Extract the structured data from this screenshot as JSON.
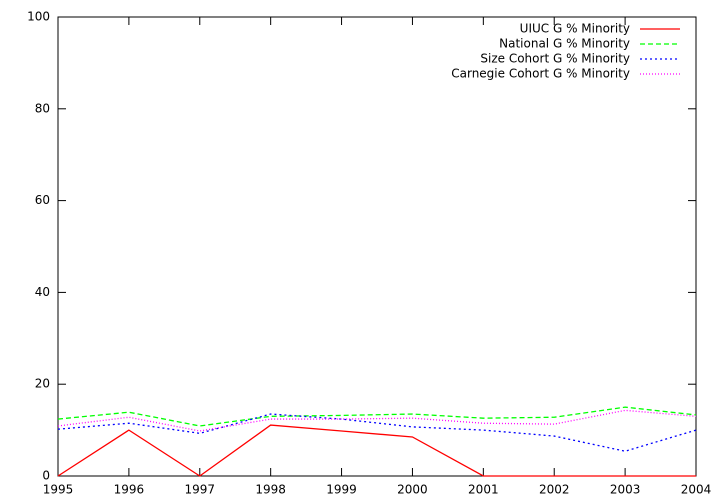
{
  "chart_data": {
    "type": "line",
    "x": [
      1995,
      1996,
      1997,
      1998,
      1999,
      2000,
      2001,
      2002,
      2003,
      2004
    ],
    "series": [
      {
        "name": "UIUC G % Minority",
        "color": "#ff0000",
        "dash": "solid",
        "values": [
          0,
          10,
          0,
          11.1,
          9.8,
          8.5,
          0,
          0,
          0,
          0
        ]
      },
      {
        "name": "National G % Minority",
        "color": "#00ff00",
        "dash": "dashed",
        "values": [
          12.4,
          13.9,
          10.9,
          13,
          13.2,
          13.5,
          12.6,
          12.8,
          15,
          13.3
        ]
      },
      {
        "name": "Size Cohort G % Minority",
        "color": "#0000ff",
        "dash": "dotted",
        "values": [
          10.2,
          11.5,
          9.3,
          13.5,
          12.4,
          10.7,
          10,
          8.7,
          5.4,
          10
        ]
      },
      {
        "name": "Carnegie Cohort G % Minority",
        "color": "#ff00ff",
        "dash": "fine-dotted",
        "values": [
          10.9,
          12.8,
          9.8,
          12.4,
          12.4,
          12.6,
          11.5,
          11.3,
          14.3,
          13
        ]
      }
    ],
    "xlim": [
      1995,
      2004
    ],
    "xticks": [
      1995,
      1996,
      1997,
      1998,
      1999,
      2000,
      2001,
      2002,
      2003,
      2004
    ],
    "ylim": [
      0,
      100
    ],
    "yticks": [
      0,
      20,
      40,
      60,
      80,
      100
    ],
    "legend": "top-right"
  }
}
